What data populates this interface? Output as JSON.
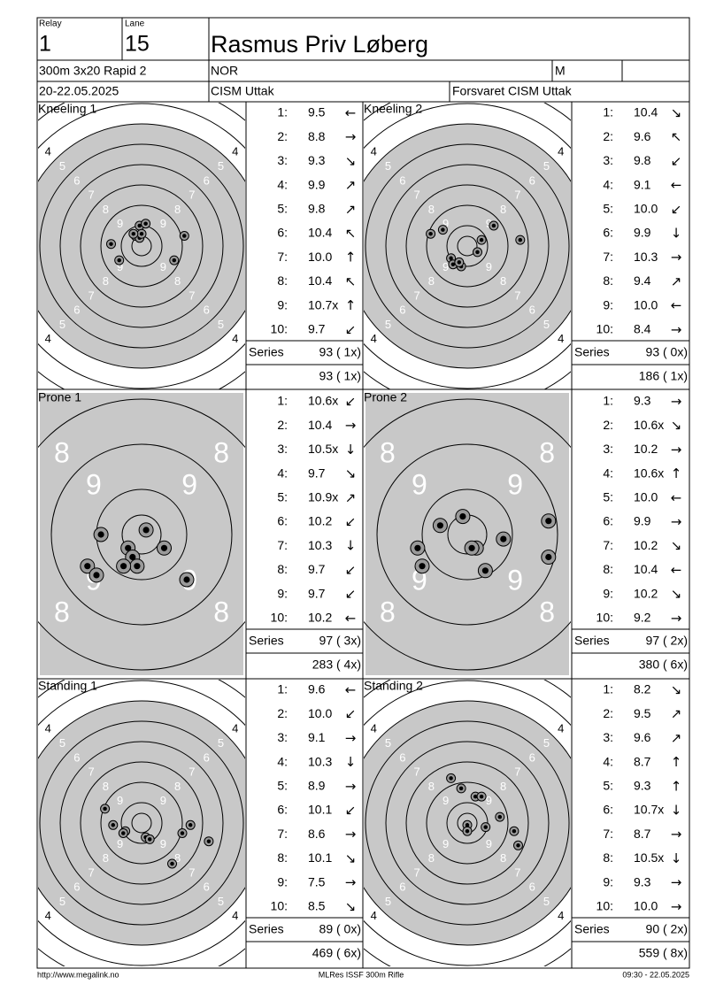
{
  "header": {
    "relay_label": "Relay",
    "relay": "1",
    "lane_label": "Lane",
    "lane": "15",
    "name": "Rasmus Priv Løberg",
    "event": "300m 3x20 Rapid 2",
    "nation": "NOR",
    "gender": "M",
    "date": "20-22.05.2025",
    "competition": "CISM Uttak",
    "club": "Forsvaret CISM Uttak"
  },
  "shot_labels": [
    "1:",
    "2:",
    "3:",
    "4:",
    "5:",
    "6:",
    "7:",
    "8:",
    "9:",
    "10:"
  ],
  "series_label": "Series",
  "targets": [
    {
      "title": "Kneeling 1",
      "style": "ring",
      "ring_labels": [
        4,
        5,
        6,
        7,
        8,
        9
      ],
      "scores": [
        "9.5",
        "8.8",
        "9.3",
        "9.9",
        "9.8",
        "10.4",
        "10.0",
        "10.4",
        "10.7x",
        "9.7"
      ],
      "dirs": [
        "←",
        "→",
        "↘",
        "↗",
        "↗",
        "↖",
        "↑",
        "↖",
        "↑",
        "↙"
      ],
      "series": "93 ( 1x)",
      "total": "93 ( 1x)",
      "impacts": [
        [
          -0.1,
          -1.0
        ],
        [
          0.2,
          -1.1
        ],
        [
          -0.3,
          -0.5
        ],
        [
          -0.1,
          -0.4
        ],
        [
          -1.5,
          -0.1
        ],
        [
          -1.1,
          0.7
        ],
        [
          1.6,
          0.7
        ],
        [
          2.1,
          -0.5
        ],
        [
          0.0,
          -0.6
        ],
        [
          -0.4,
          -0.6
        ]
      ]
    },
    {
      "title": "Kneeling 2",
      "style": "ring",
      "ring_labels": [
        4,
        5,
        6,
        7,
        8,
        9
      ],
      "scores": [
        "10.4",
        "9.6",
        "9.8",
        "9.1",
        "10.0",
        "9.9",
        "10.3",
        "9.4",
        "10.0",
        "8.4"
      ],
      "dirs": [
        "↘",
        "↖",
        "↙",
        "←",
        "↙",
        "↓",
        "→",
        "↗",
        "←",
        "→"
      ],
      "series": "93 ( 0x)",
      "total": "186 ( 1x)",
      "impacts": [
        [
          -1.8,
          -0.6
        ],
        [
          -1.2,
          -0.8
        ],
        [
          1.3,
          -1.0
        ],
        [
          2.6,
          -0.3
        ],
        [
          0.7,
          -0.3
        ],
        [
          0.5,
          0.3
        ],
        [
          -0.8,
          0.6
        ],
        [
          -0.7,
          0.9
        ],
        [
          -0.3,
          1.0
        ],
        [
          -0.4,
          0.8
        ]
      ]
    },
    {
      "title": "Prone 1",
      "style": "prone",
      "ring_labels": [
        8,
        9
      ],
      "scores": [
        "10.6x",
        "10.4",
        "10.5x",
        "9.7",
        "10.9x",
        "10.2",
        "10.3",
        "9.7",
        "9.7",
        "10.2"
      ],
      "dirs": [
        "↙",
        "→",
        "↓",
        "↘",
        "↗",
        "↙",
        "↓",
        "↙",
        "↙",
        "←"
      ],
      "series": "97 ( 3x)",
      "total": "283 ( 4x)",
      "impacts": [
        [
          -0.9,
          0.0
        ],
        [
          0.1,
          -0.1
        ],
        [
          0.5,
          0.3
        ],
        [
          -0.3,
          0.3
        ],
        [
          -0.2,
          0.5
        ],
        [
          -0.1,
          0.7
        ],
        [
          -0.4,
          0.7
        ],
        [
          -1.2,
          0.7
        ],
        [
          -1.0,
          0.9
        ],
        [
          1.0,
          1.0
        ]
      ]
    },
    {
      "title": "Prone 2",
      "style": "prone",
      "ring_labels": [
        8,
        9
      ],
      "scores": [
        "9.3",
        "10.6x",
        "10.2",
        "10.6x",
        "10.0",
        "9.9",
        "10.2",
        "10.4",
        "10.2",
        "9.2"
      ],
      "dirs": [
        "→",
        "↘",
        "→",
        "↑",
        "←",
        "→",
        "↘",
        "←",
        "↘",
        "→"
      ],
      "series": "97 ( 2x)",
      "total": "380 ( 6x)",
      "impacts": [
        [
          -0.1,
          -0.4
        ],
        [
          -0.6,
          -0.2
        ],
        [
          0.8,
          0.1
        ],
        [
          1.8,
          -0.3
        ],
        [
          1.8,
          0.5
        ],
        [
          0.4,
          0.8
        ],
        [
          -1.1,
          0.3
        ],
        [
          -1.0,
          0.7
        ],
        [
          0.2,
          0.3
        ],
        [
          0.1,
          0.3
        ]
      ]
    },
    {
      "title": "Standing 1",
      "style": "ring",
      "ring_labels": [
        4,
        5,
        6,
        7,
        8,
        9
      ],
      "scores": [
        "9.6",
        "10.0",
        "9.1",
        "10.3",
        "8.9",
        "10.1",
        "8.6",
        "10.1",
        "7.5",
        "8.5"
      ],
      "dirs": [
        "←",
        "↙",
        "→",
        "↓",
        "→",
        "↙",
        "→",
        "↘",
        "→",
        "↘"
      ],
      "series": "89 ( 0x)",
      "total": "469 ( 6x)",
      "impacts": [
        [
          -1.8,
          -0.7
        ],
        [
          -1.4,
          0.1
        ],
        [
          -0.8,
          0.4
        ],
        [
          0.2,
          0.7
        ],
        [
          0.4,
          0.8
        ],
        [
          2.0,
          0.5
        ],
        [
          2.4,
          0.1
        ],
        [
          3.3,
          0.9
        ],
        [
          1.5,
          2.0
        ],
        [
          -0.9,
          0.5
        ]
      ]
    },
    {
      "title": "Standing 2",
      "style": "ring",
      "ring_labels": [
        4,
        5,
        6,
        7,
        8,
        9
      ],
      "scores": [
        "8.2",
        "9.5",
        "9.6",
        "8.7",
        "9.3",
        "10.7x",
        "8.7",
        "10.5x",
        "9.3",
        "10.0"
      ],
      "dirs": [
        "↘",
        "↗",
        "↗",
        "↑",
        "↑",
        "↓",
        "→",
        "↓",
        "→",
        "→"
      ],
      "series": "90 ( 2x)",
      "total": "559 ( 8x)",
      "impacts": [
        [
          -0.8,
          -2.2
        ],
        [
          -0.3,
          -1.7
        ],
        [
          0.4,
          -1.3
        ],
        [
          0.7,
          -1.3
        ],
        [
          1.6,
          -0.3
        ],
        [
          2.3,
          0.4
        ],
        [
          2.5,
          1.1
        ],
        [
          0.0,
          0.1
        ],
        [
          0.0,
          0.4
        ],
        [
          0.9,
          0.2
        ]
      ]
    }
  ],
  "footer": {
    "url": "http://www.megalink.no",
    "software": "MLRes ISSF 300m Rifle",
    "timestamp": "09:30 - 22.05.2025"
  }
}
